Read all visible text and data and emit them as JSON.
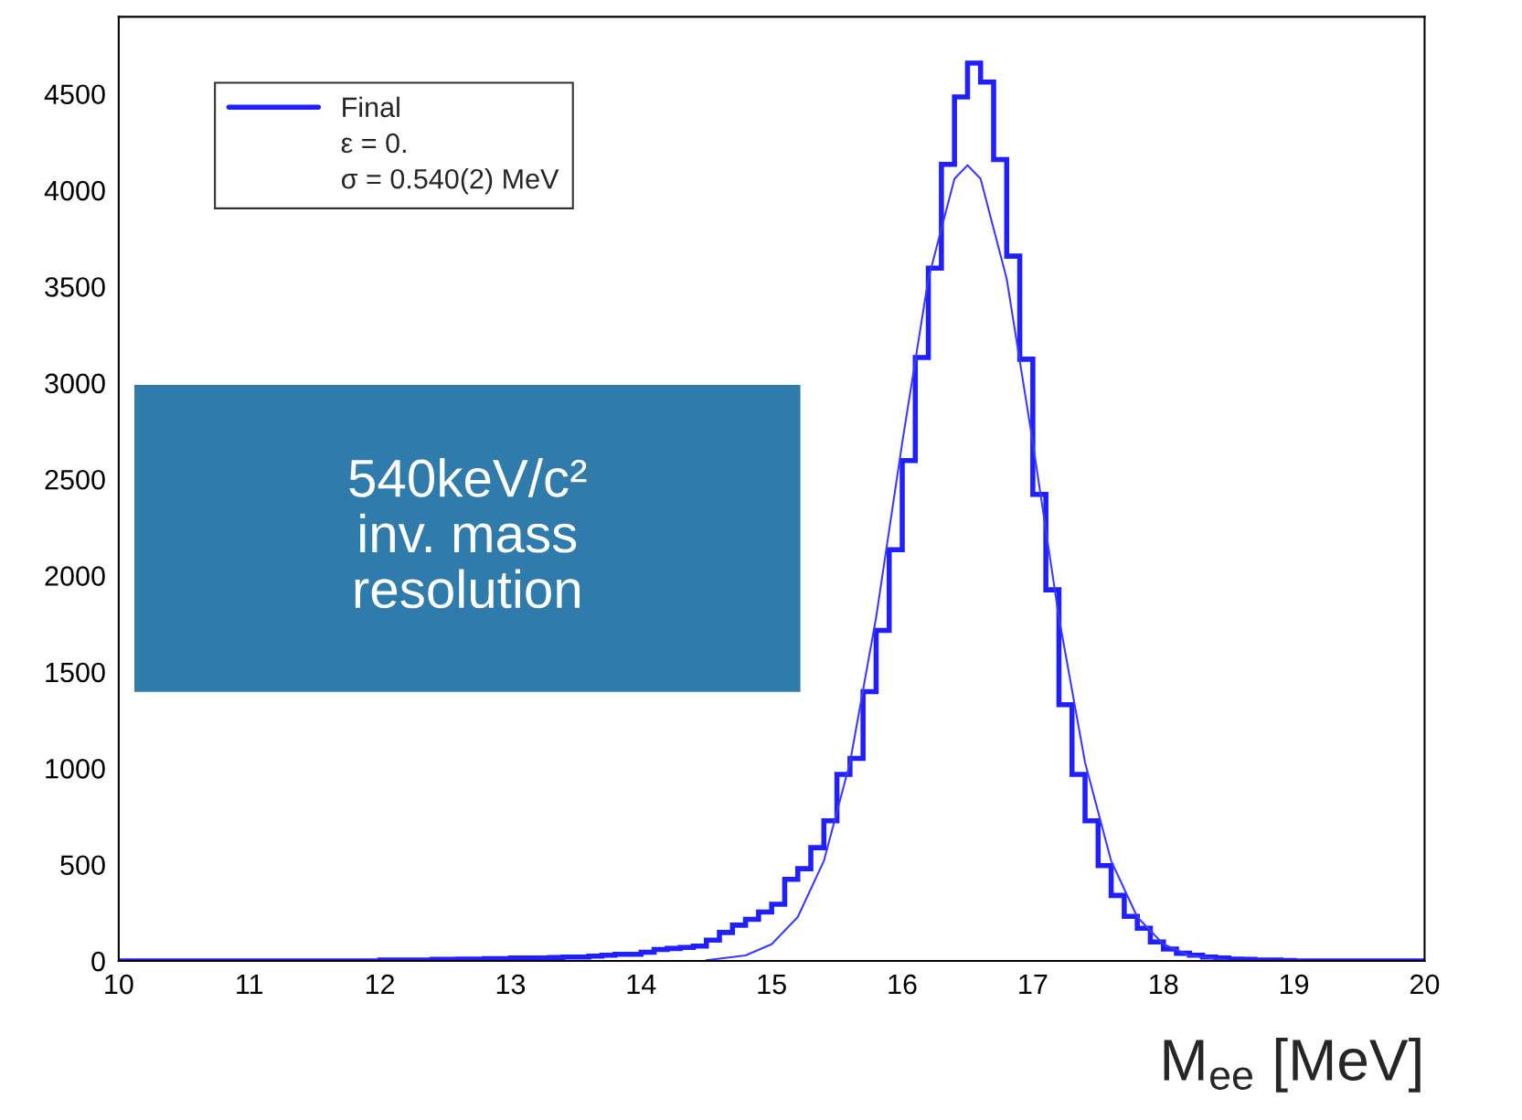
{
  "chart_data": {
    "type": "histogram",
    "bins": [
      10.0,
      10.1,
      10.2,
      10.3,
      10.4,
      10.5,
      10.6,
      10.7,
      10.8,
      10.9,
      11.0,
      11.1,
      11.2,
      11.3,
      11.4,
      11.5,
      11.6,
      11.7,
      11.8,
      11.9,
      12.0,
      12.1,
      12.2,
      12.3,
      12.4,
      12.5,
      12.6,
      12.7,
      12.8,
      12.9,
      13.0,
      13.1,
      13.2,
      13.3,
      13.4,
      13.5,
      13.6,
      13.7,
      13.8,
      13.9,
      14.0,
      14.1,
      14.2,
      14.3,
      14.4,
      14.5,
      14.6,
      14.7,
      14.8,
      14.9,
      15.0,
      15.1,
      15.2,
      15.3,
      15.4,
      15.5,
      15.6,
      15.7,
      15.8,
      15.9,
      16.0,
      16.1,
      16.2,
      16.3,
      16.4,
      16.5,
      16.6,
      16.7,
      16.8,
      16.9,
      17.0,
      17.1,
      17.2,
      17.3,
      17.4,
      17.5,
      17.6,
      17.7,
      17.8,
      17.9,
      18.0,
      18.1,
      18.2,
      18.3,
      18.4,
      18.5,
      18.6,
      18.7,
      18.8,
      18.9,
      19.0,
      19.1,
      19.2,
      19.3,
      19.4,
      19.5,
      19.6,
      19.7,
      19.8,
      19.9,
      20.0
    ],
    "series": [
      {
        "name": "Final",
        "color": "#1f1fff",
        "values": [
          0,
          0,
          0,
          0,
          0,
          0,
          0,
          0,
          0,
          0,
          0,
          0,
          0,
          0,
          0,
          0,
          0,
          0,
          0,
          0,
          5,
          5,
          5,
          5,
          8,
          8,
          10,
          10,
          12,
          12,
          15,
          15,
          15,
          18,
          20,
          20,
          25,
          30,
          35,
          35,
          45,
          60,
          65,
          70,
          77,
          108,
          148,
          186,
          216,
          254,
          294,
          424,
          479,
          588,
          727,
          968,
          1051,
          1398,
          1716,
          2134,
          2597,
          3132,
          3596,
          4134,
          4484,
          4660,
          4561,
          4159,
          3658,
          3123,
          2421,
          1926,
          1330,
          968,
          727,
          495,
          340,
          232,
          170,
          99,
          62,
          40,
          30,
          20,
          15,
          10,
          8,
          5,
          5,
          2,
          0,
          0,
          0,
          0,
          0,
          0,
          0,
          0,
          0,
          0
        ]
      },
      {
        "type": "line",
        "color": "#3a3aff",
        "x": [
          14.5,
          14.8,
          15.0,
          15.2,
          15.4,
          15.6,
          15.8,
          16.0,
          16.2,
          16.4,
          16.5,
          16.6,
          16.8,
          17.0,
          17.2,
          17.4,
          17.6,
          17.8,
          18.0,
          18.2,
          18.5
        ],
        "values": [
          4,
          29,
          87,
          228,
          519,
          1030,
          1783,
          2690,
          3540,
          4060,
          4130,
          4060,
          3540,
          2690,
          1783,
          1030,
          519,
          228,
          87,
          29,
          4
        ]
      }
    ],
    "xlim": [
      10,
      20
    ],
    "ylim": [
      0,
      4900
    ],
    "xticks": [
      10,
      11,
      12,
      13,
      14,
      15,
      16,
      17,
      18,
      19,
      20
    ],
    "yticks": [
      0,
      500,
      1000,
      1500,
      2000,
      2500,
      3000,
      3500,
      4000,
      4500
    ],
    "xlabel": "M$_{ee}$ [MeV]",
    "legend": "top left",
    "annotations": [
      "ε = 0.",
      "σ = 0.540(2) MeV",
      "540keV/c²\ninv. mass\nresolution"
    ]
  }
}
